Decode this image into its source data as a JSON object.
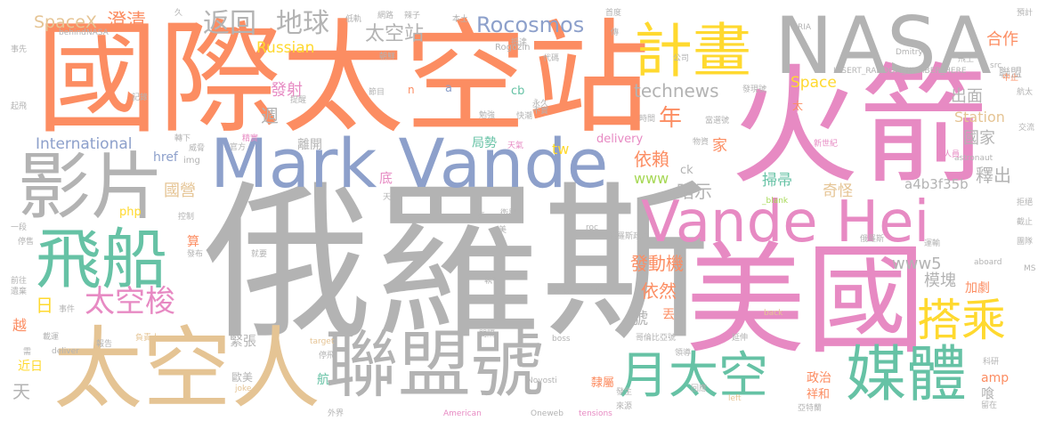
{
  "palette": {
    "orange": "#fc8d62",
    "gray": "#b3b3b3",
    "blue": "#8da0cb",
    "pink": "#e78ac3",
    "green": "#66c2a5",
    "tan": "#e5c494",
    "yellow": "#ffd92f",
    "lime": "#a6d854"
  },
  "words": {
    "w_guoji_taikongzhan": "國際太空站",
    "w_eluosi": "俄羅斯",
    "w_huojian": "火箭",
    "w_meiguo": "美國",
    "w_mark_vande": "Mark Vande",
    "w_nasa": "NASA",
    "w_vande_hei": "Vande Hei",
    "w_taikongren": "太空人",
    "w_lianmenghao": "聯盟號",
    "w_yingpian": "影片",
    "w_feichuan": "飛船",
    "w_jihua": "計畫",
    "w_meiti": "媒體",
    "w_dacheng": "搭乘",
    "w_yue_taikong": "月太空",
    "w_taikongsuo": "太空梭",
    "w_fanhui": "返回",
    "w_diqiu": "地球",
    "w_spacex": "SpaceX",
    "w_chengqing": "澄清",
    "w_rocosmos": "Rocosmos",
    "w_taikongzhan_s": "太空站",
    "w_russian": "Russian",
    "w_international": "International",
    "w_technews": "technews",
    "w_space": "Space",
    "w_station": "Station",
    "w_hezuo": "合作",
    "w_chumian": "出面",
    "w_lianmeng": "聯盟",
    "w_nian": "年",
    "w_fashe": "發射",
    "w_zhou": "週",
    "w_guojia": "國家",
    "w_yilai": "依賴",
    "w_anshi": "暗示",
    "w_saozhou": "掃帚",
    "w_qiguai": "奇怪",
    "w_shichu": "釋出",
    "w_a4b3f35b": "a4b3f35b",
    "w_www": "www",
    "w_www5": "www5",
    "w_fadongji": "發動機",
    "w_yiran": "依然",
    "w_mokuai": "模塊",
    "w_jiaju": "加劇",
    "w_guoying": "國營",
    "w_tw": "tw",
    "w_delivery": "delivery",
    "w_href": "href",
    "w_jia": "家",
    "w_di": "底",
    "w_ri": "日",
    "w_hao": "號",
    "w_diu": "丟",
    "w_jinzhang": "緊張",
    "w_jinri": "近日",
    "w_tian": "天",
    "w_yue": "越",
    "w_likai": "離開",
    "w_jushi": "局勢",
    "w_zhengzhi": "政治",
    "w_xianghe": "祥和",
    "w_lishu": "隸屬",
    "w_hang": "航",
    "w_oumei": "歐美",
    "w_amp": "amp",
    "w_han": "喰",
    "w_suan": "算",
    "w_php": "php",
    "w_cb": "cb",
    "w_ck": "ck",
    "w_a": "a",
    "w_n": "n",
    "w_tai": "太",
    "w_img": "img",
    "w_behindnasa": "behindNASA",
    "w_rogozin": "Rogozin",
    "w_insert": "INSERT_RANDOM_NUMBER_HERE",
    "w_ria": "RIA",
    "w_dmitry": "Dmitry",
    "w_astronaut": "astronaut",
    "w_src": "src",
    "w_blank": "_blank",
    "w_roc": "roc",
    "w_novosti": "Novosti",
    "w_aboard": "aboard",
    "w_ms": "MS",
    "w_back": "back",
    "w_target": "target",
    "w_deliver": "deliver",
    "w_boss": "boss",
    "w_joke": "joke",
    "w_american": "American",
    "w_oneweb": "Oneweb",
    "w_tensions": "tensions",
    "w_left": "left",
    "w_shixian": "事先",
    "w_qifei": "起飛",
    "w_jilu": "記錄",
    "w_dijie": "抵達",
    "w_zhuanxiang": "轉下",
    "w_kongzhi": "控制",
    "w_fabu": "發布",
    "w_yiduan": "一段",
    "w_qianwang": "前往",
    "w_tingshou": "停售",
    "w_dingbu": "遺棄",
    "w_shijian": "事件",
    "w_zaichen": "載運",
    "w_baogao": "報告",
    "w_fuzeren": "負責人",
    "w_tingfei": "停飛",
    "w_waijie": "外界",
    "w_jiuyao": "就要",
    "w_zhixing": "執行",
    "w_jianting": "間隔",
    "w_lingdao": "領導",
    "w_jianshi": "架設",
    "w_xuan": "宣",
    "w_xuqiu": "需",
    "w_mirage": "蜃",
    "w_wangluo": "網路",
    "w_lanzi": "辣子",
    "w_benzhu": "本土",
    "w_chuan": "傳",
    "w_jiuzi": "久",
    "w_dixiao": "低軌",
    "w_fasheng": "發生",
    "w_laiyuan": "來源",
    "w_huiying": "回應",
    "w_yanshen": "延伸",
    "w_kongdeyu": "亞特蘭",
    "w_kexuejia": "科研",
    "w_liuzai": "留在",
    "w_dingzhi": "拒絕",
    "w_jiezhi": "截止",
    "w_yunshu": "運輸",
    "w_zhongzhi": "中止",
    "w_yuji": "預計",
    "w_feishang": "飛上",
    "w_hangtian": "航太",
    "w_zhongdui": "團隊",
    "w_renyuan": "人員",
    "w_xinshiji": "新世紀",
    "w_dangxuan": "當選號",
    "w_faxianhao": "發現號",
    "w_kuichao": "快潮",
    "w_tianqi": "天氣",
    "w_yongjiu": "永久",
    "w_shiyi": "時間",
    "w_weixing": "衛星",
    "w_eluosizhengfu": "俄羅斯政府",
    "w_gebilunbi": "哥倫比亞號",
    "w_eluosi_s": "俄羅斯",
    "w_gongsi": "公司",
    "w_daima": "代碼",
    "w_mei": "美",
    "w_tianshang": "天上",
    "w_jiemu": "節目",
    "w_wuyuan": "物資",
    "w_guanfang": "官方",
    "w_jingmi": "精實",
    "w_weiji": "威脅",
    "w_chaolian": "朝鮮",
    "w_mianqiang": "勉強",
    "w_buxiao": "不實",
    "w_tixing": "提醒",
    "w_shoudian": "首度",
    "w_jiaoliu": "交流"
  }
}
